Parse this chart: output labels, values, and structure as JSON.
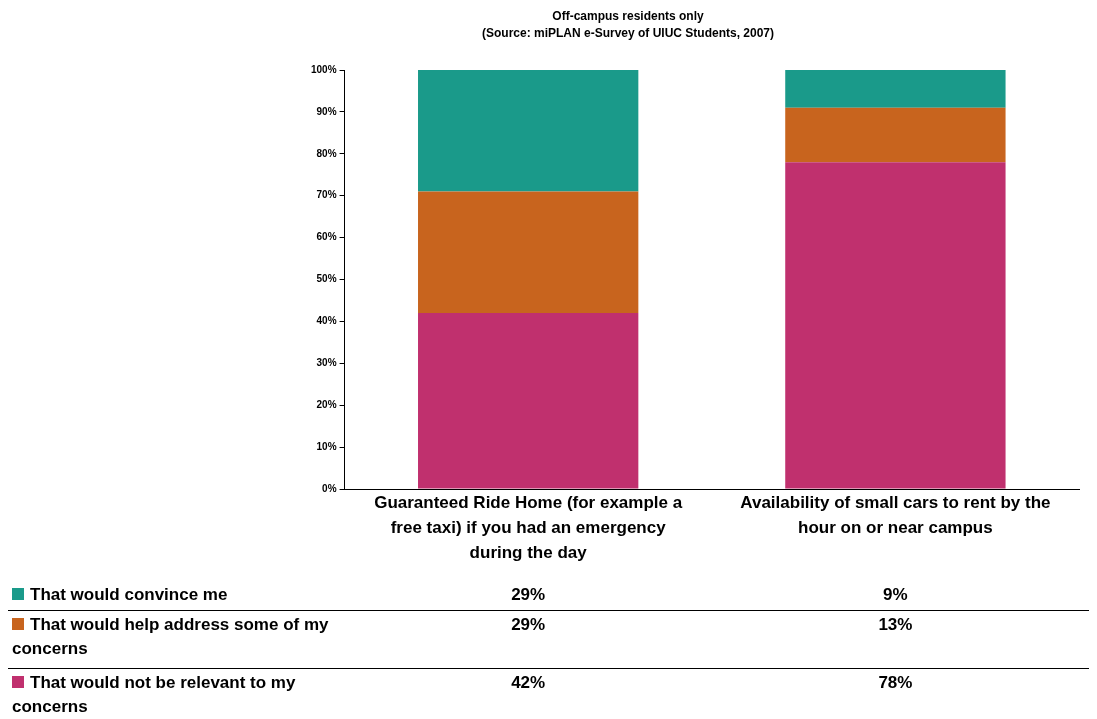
{
  "chart_data": {
    "type": "bar",
    "stacked": true,
    "title": "Off-campus residents only",
    "subtitle": "(Source: miPLAN e-Survey of UIUC Students, 2007)",
    "categories": [
      "Guaranteed Ride Home (for example a free taxi) if you had an emergency during the day",
      "Availability of small cars to rent by the hour on or near campus"
    ],
    "series": [
      {
        "name": "That would not be relevant to my concerns",
        "color": "#c0306e",
        "values": [
          42,
          78
        ],
        "value_labels": [
          "42%",
          "78%"
        ]
      },
      {
        "name": "That would help address some of my concerns",
        "color": "#c8641e",
        "values": [
          29,
          13
        ],
        "value_labels": [
          "29%",
          "13%"
        ]
      },
      {
        "name": "That would convince me",
        "color": "#1a9a8a",
        "values": [
          29,
          9
        ],
        "value_labels": [
          "29%",
          "9%"
        ]
      }
    ],
    "ylim": [
      0,
      100
    ],
    "yticks": [
      {
        "value": 0,
        "label": "0%"
      },
      {
        "value": 10,
        "label": "10%"
      },
      {
        "value": 20,
        "label": "20%"
      },
      {
        "value": 30,
        "label": "30%"
      },
      {
        "value": 40,
        "label": "40%"
      },
      {
        "value": 50,
        "label": "50%"
      },
      {
        "value": 60,
        "label": "60%"
      },
      {
        "value": 70,
        "label": "70%"
      },
      {
        "value": 80,
        "label": "80%"
      },
      {
        "value": 90,
        "label": "90%"
      },
      {
        "value": 100,
        "label": "100%"
      }
    ],
    "grid": false,
    "legend": "bottom"
  }
}
